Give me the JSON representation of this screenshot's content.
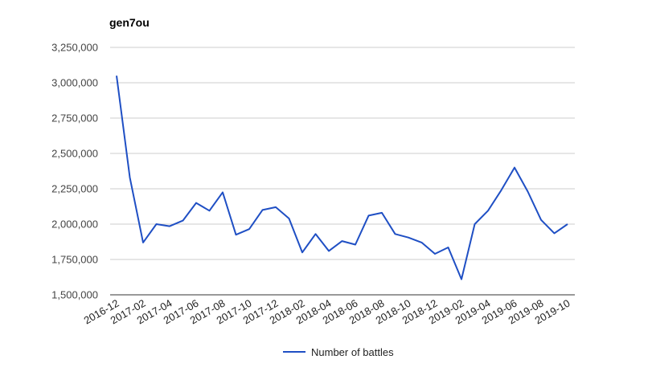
{
  "chart_data": {
    "type": "line",
    "title": "gen7ou",
    "xlabel": "",
    "ylabel": "",
    "x": [
      "2016-12",
      "2017-01",
      "2017-02",
      "2017-03",
      "2017-04",
      "2017-05",
      "2017-06",
      "2017-07",
      "2017-08",
      "2017-09",
      "2017-10",
      "2017-11",
      "2017-12",
      "2018-01",
      "2018-02",
      "2018-03",
      "2018-04",
      "2018-05",
      "2018-06",
      "2018-07",
      "2018-08",
      "2018-09",
      "2018-10",
      "2018-11",
      "2018-12",
      "2019-01",
      "2019-02",
      "2019-03",
      "2019-04",
      "2019-05",
      "2019-06",
      "2019-07",
      "2019-08",
      "2019-09",
      "2019-10"
    ],
    "x_tick_labels": [
      "2016-12",
      "2017-02",
      "2017-04",
      "2017-06",
      "2017-08",
      "2017-10",
      "2017-12",
      "2018-02",
      "2018-04",
      "2018-06",
      "2018-08",
      "2018-10",
      "2018-12",
      "2019-02",
      "2019-04",
      "2019-06",
      "2019-08",
      "2019-10"
    ],
    "y_tick_values": [
      1500000,
      1750000,
      2000000,
      2250000,
      2500000,
      2750000,
      3000000,
      3250000
    ],
    "y_tick_labels": [
      "1,500,000",
      "1,750,000",
      "2,000,000",
      "2,250,000",
      "2,500,000",
      "2,750,000",
      "3,000,000",
      "3,250,000"
    ],
    "ylim": [
      1500000,
      3250000
    ],
    "grid": true,
    "legend_position": "bottom",
    "series": [
      {
        "name": "Number of battles",
        "color": "#1f4fc4",
        "values": [
          3050000,
          2330000,
          1870000,
          2000000,
          1985000,
          2025000,
          2150000,
          2095000,
          2225000,
          1925000,
          1965000,
          2100000,
          2120000,
          2040000,
          1800000,
          1930000,
          1810000,
          1880000,
          1855000,
          2060000,
          2080000,
          1930000,
          1905000,
          1870000,
          1790000,
          1835000,
          1610000,
          2000000,
          2095000,
          2240000,
          2400000,
          2230000,
          2030000,
          1935000,
          2000000
        ]
      }
    ]
  }
}
